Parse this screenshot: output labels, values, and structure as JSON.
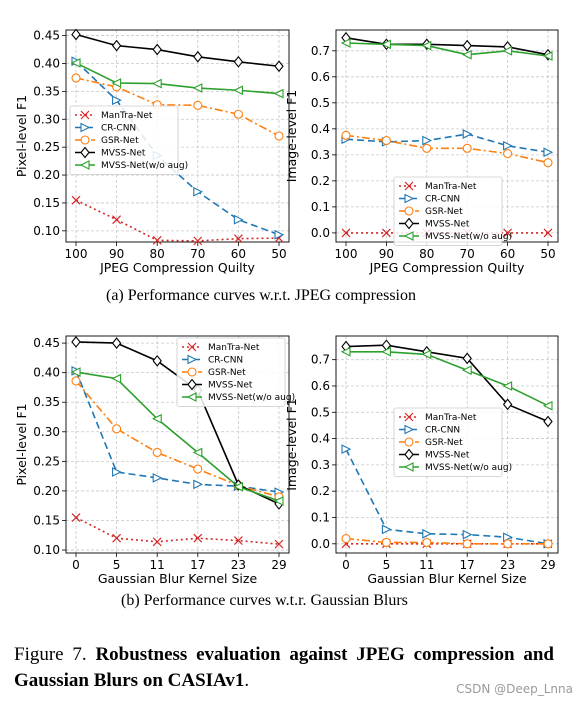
{
  "figure": {
    "caption_label": "Figure 7.",
    "caption_bold": "Robustness evaluation against JPEG compression and Gaussian Blurs on CASIAv1",
    "caption_end": ".",
    "subcaption_a": "(a)  Performance curves w.r.t. JPEG compression",
    "subcaption_b": "(b)  Performance curves w.t.r. Gaussian Blurs",
    "watermark": "CSDN @Deep_Lnna"
  },
  "styles": {
    "ManTra-Net": {
      "color": "#d62728",
      "dash": "2,3",
      "marker": "x"
    },
    "CR-CNN": {
      "color": "#1f77b4",
      "dash": "7,4",
      "marker": "tri"
    },
    "GSR-Net": {
      "color": "#ff7f0e",
      "dash": "8,3,2,3",
      "marker": "circle"
    },
    "MVSS-Net": {
      "color": "#000000",
      "dash": "",
      "marker": "diamond"
    },
    "MVSS-Net(w/o aug)": {
      "color": "#2ca02c",
      "dash": "",
      "marker": "tri-left"
    }
  },
  "chart_data": [
    {
      "type": "line",
      "xlabel": "JPEG Compression Quilty",
      "ylabel": "Pixel-level F1",
      "categories": [
        "100",
        "90",
        "80",
        "70",
        "60",
        "50"
      ],
      "ylim": [
        0.08,
        0.46
      ],
      "yticks": [
        "0.10",
        "0.15",
        "0.20",
        "0.25",
        "0.30",
        "0.35",
        "0.40",
        "0.45"
      ],
      "grid": true,
      "legend_position": "center-left",
      "series": [
        {
          "name": "ManTra-Net",
          "values": [
            0.155,
            0.12,
            0.083,
            0.082,
            0.086,
            0.087
          ]
        },
        {
          "name": "CR-CNN",
          "values": [
            0.404,
            0.334,
            0.235,
            0.17,
            0.12,
            0.093
          ]
        },
        {
          "name": "GSR-Net",
          "values": [
            0.374,
            0.358,
            0.326,
            0.325,
            0.309,
            0.27
          ]
        },
        {
          "name": "MVSS-Net",
          "values": [
            0.452,
            0.432,
            0.425,
            0.412,
            0.403,
            0.395
          ]
        },
        {
          "name": "MVSS-Net(w/o aug)",
          "values": [
            0.401,
            0.365,
            0.364,
            0.356,
            0.352,
            0.346
          ]
        }
      ]
    },
    {
      "type": "line",
      "xlabel": "JPEG Compression Quilty",
      "ylabel": "Image-level F1",
      "categories": [
        "100",
        "90",
        "80",
        "70",
        "60",
        "50"
      ],
      "ylim": [
        -0.035,
        0.78
      ],
      "yticks": [
        "0.0",
        "0.1",
        "0.2",
        "0.3",
        "0.4",
        "0.5",
        "0.6",
        "0.7"
      ],
      "grid": true,
      "legend_position": "lower-center",
      "series": [
        {
          "name": "ManTra-Net",
          "values": [
            0.0,
            0.0,
            0.0,
            0.0,
            0.0,
            0.0
          ]
        },
        {
          "name": "CR-CNN",
          "values": [
            0.36,
            0.35,
            0.355,
            0.38,
            0.335,
            0.31
          ]
        },
        {
          "name": "GSR-Net",
          "values": [
            0.375,
            0.355,
            0.325,
            0.325,
            0.305,
            0.27
          ]
        },
        {
          "name": "MVSS-Net",
          "values": [
            0.75,
            0.725,
            0.725,
            0.72,
            0.715,
            0.685
          ]
        },
        {
          "name": "MVSS-Net(w/o aug)",
          "values": [
            0.73,
            0.725,
            0.72,
            0.685,
            0.7,
            0.68
          ]
        }
      ]
    },
    {
      "type": "line",
      "xlabel": "Gaussian Blur Kernel Size",
      "ylabel": "Pixel-level F1",
      "categories": [
        "0",
        "5",
        "11",
        "17",
        "23",
        "29"
      ],
      "ylim": [
        0.095,
        0.462
      ],
      "yticks": [
        "0.10",
        "0.15",
        "0.20",
        "0.25",
        "0.30",
        "0.35",
        "0.40",
        "0.45"
      ],
      "grid": true,
      "legend_position": "upper-right",
      "series": [
        {
          "name": "ManTra-Net",
          "values": [
            0.155,
            0.12,
            0.114,
            0.12,
            0.116,
            0.11
          ]
        },
        {
          "name": "CR-CNN",
          "values": [
            0.403,
            0.232,
            0.222,
            0.211,
            0.208,
            0.198
          ]
        },
        {
          "name": "GSR-Net",
          "values": [
            0.386,
            0.305,
            0.265,
            0.237,
            0.209,
            0.19
          ]
        },
        {
          "name": "MVSS-Net",
          "values": [
            0.452,
            0.45,
            0.42,
            0.37,
            0.21,
            0.178
          ]
        },
        {
          "name": "MVSS-Net(w/o aug)",
          "values": [
            0.401,
            0.39,
            0.322,
            0.265,
            0.207,
            0.183
          ]
        }
      ]
    },
    {
      "type": "line",
      "xlabel": "Gaussian Blur Kernel Size",
      "ylabel": "Image-level F1",
      "categories": [
        "0",
        "5",
        "11",
        "17",
        "23",
        "29"
      ],
      "ylim": [
        -0.035,
        0.79
      ],
      "yticks": [
        "0.0",
        "0.1",
        "0.2",
        "0.3",
        "0.4",
        "0.5",
        "0.6",
        "0.7"
      ],
      "grid": true,
      "legend_position": "lower-center",
      "series": [
        {
          "name": "ManTra-Net",
          "values": [
            0.0,
            0.0,
            0.0,
            0.0,
            0.0,
            0.0
          ]
        },
        {
          "name": "CR-CNN",
          "values": [
            0.36,
            0.055,
            0.038,
            0.035,
            0.025,
            0.0
          ]
        },
        {
          "name": "GSR-Net",
          "values": [
            0.02,
            0.005,
            0.005,
            0.0,
            0.0,
            0.0
          ]
        },
        {
          "name": "MVSS-Net",
          "values": [
            0.75,
            0.755,
            0.73,
            0.705,
            0.53,
            0.465
          ]
        },
        {
          "name": "MVSS-Net(w/o aug)",
          "values": [
            0.73,
            0.73,
            0.72,
            0.66,
            0.6,
            0.525
          ]
        }
      ]
    }
  ]
}
